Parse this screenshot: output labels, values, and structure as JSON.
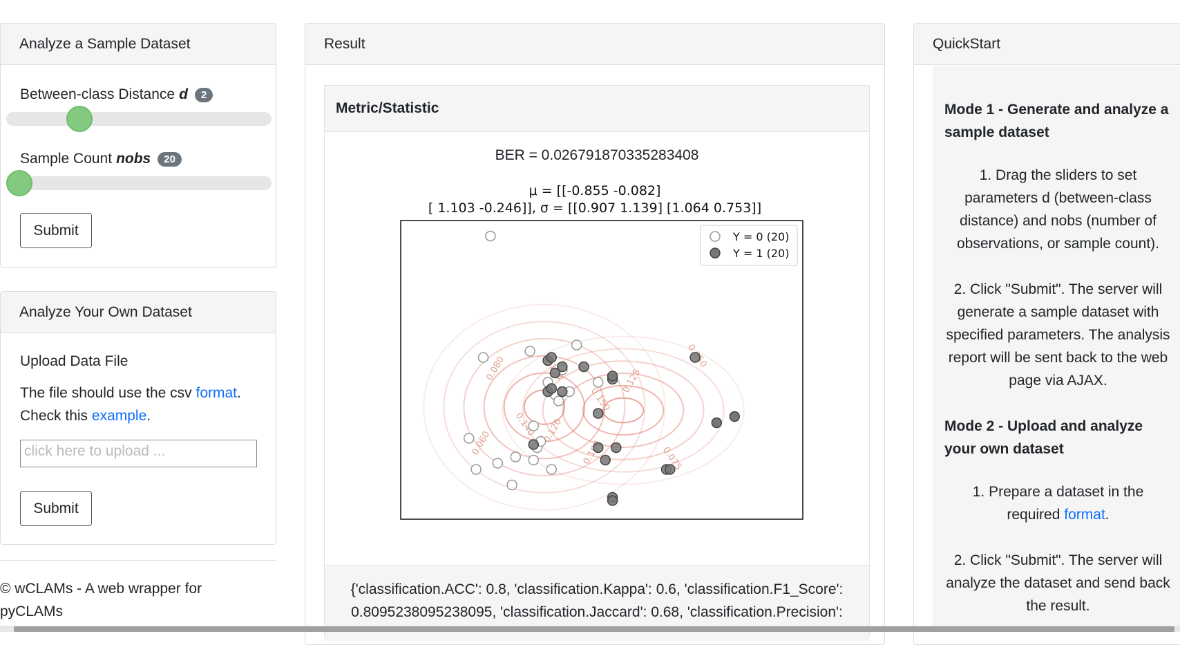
{
  "sample_panel": {
    "title": "Analyze a Sample Dataset",
    "distance_label": "Between-class Distance",
    "distance_symbol": "d",
    "distance_value": "2",
    "distance_fraction": 0.25,
    "count_label": "Sample Count",
    "count_symbol": "nobs",
    "count_value": "20",
    "count_fraction": 0.0,
    "submit_label": "Submit"
  },
  "upload_panel": {
    "title": "Analyze Your Own Dataset",
    "upload_label": "Upload Data File",
    "desc_prefix": "The file should use the csv",
    "format_link": "format",
    "desc_mid": ".",
    "check_prefix": "Check this",
    "example_link": "example",
    "check_suffix": ".",
    "upload_placeholder": "click here to upload ...",
    "submit_label": "Submit"
  },
  "footer": {
    "line1": "© wCLAMs - A web wrapper for",
    "line2": "pyCLAMs"
  },
  "result_panel": {
    "title": "Result",
    "metric_header": "Metric/Statistic",
    "ber": "BER = 0.026791870335283408",
    "metrics_line1": "{'classification.ACC': 0.8, 'classification.Kappa': 0.6, 'classification.F1_Score':",
    "metrics_line2": "0.8095238095238095, 'classification.Jaccard': 0.68, 'classification.Precision':"
  },
  "chart_data": {
    "type": "scatter",
    "title_line1": "μ = [[-0.855 -0.082]",
    "title_line2": "[ 1.103 -0.246]], σ = [[0.907 1.139] [1.064 0.753]]",
    "legend_placement": "top-right",
    "series": [
      {
        "name": "Y = 0 (20)",
        "color": "#ffffff",
        "points": [
          [
            -1.15,
            2.55
          ],
          [
            -1.25,
            0.6
          ],
          [
            -0.6,
            0.7
          ],
          [
            0.05,
            0.8
          ],
          [
            -1.45,
            -0.7
          ],
          [
            -1.35,
            -1.2
          ],
          [
            -1.05,
            -1.1
          ],
          [
            -0.8,
            -1.0
          ],
          [
            -0.55,
            -0.5
          ],
          [
            -0.5,
            -0.85
          ],
          [
            -0.55,
            -1.05
          ],
          [
            -0.45,
            -0.75
          ],
          [
            -0.35,
            0.2
          ],
          [
            -0.25,
            0.0
          ],
          [
            -0.2,
            -0.1
          ],
          [
            0.35,
            0.2
          ],
          [
            -0.15,
            0.4
          ],
          [
            -0.85,
            -1.45
          ],
          [
            -0.3,
            -1.2
          ],
          [
            -0.05,
            0.05
          ]
        ]
      },
      {
        "name": "Y = 1 (20)",
        "color": "#777777",
        "points": [
          [
            -0.35,
            0.55
          ],
          [
            -0.3,
            0.6
          ],
          [
            -0.15,
            0.45
          ],
          [
            0.15,
            0.45
          ],
          [
            -0.25,
            0.35
          ],
          [
            0.55,
            0.25
          ],
          [
            0.55,
            0.3
          ],
          [
            -0.35,
            0.05
          ],
          [
            -0.3,
            0.1
          ],
          [
            -0.15,
            0.05
          ],
          [
            0.35,
            -0.3
          ],
          [
            -0.55,
            -0.8
          ],
          [
            0.35,
            -0.85
          ],
          [
            0.6,
            -0.85
          ],
          [
            0.45,
            -1.05
          ],
          [
            1.3,
            -1.2
          ],
          [
            1.35,
            -1.2
          ],
          [
            0.55,
            -1.65
          ],
          [
            0.55,
            -1.7
          ],
          [
            1.7,
            0.6
          ]
        ]
      }
    ],
    "extra_points": [
      [
        2.0,
        -0.45
      ],
      [
        2.25,
        -0.35
      ]
    ],
    "contour_labels": [
      "0.080",
      "0.100",
      "0.060",
      "0.140",
      "0.120",
      "0.050",
      "0.125",
      "0.150",
      "0.100",
      "0.075"
    ],
    "xlim": [
      -2.4,
      3.2
    ],
    "ylim": [
      -2.0,
      2.8
    ],
    "grid": false
  },
  "quickstart": {
    "title": "QuickStart",
    "mode1_title": "Mode 1 - Generate and analyze a sample dataset",
    "mode1_step1": "1. Drag the sliders to set parameters d (between-class distance) and nobs (number of observations, or sample count).",
    "mode1_step2": "2. Click \"Submit\". The server will generate a sample dataset with specified parameters. The analysis report will be sent back to the web page via AJAX.",
    "mode2_title": "Mode 2 - Upload and analyze your own dataset",
    "mode2_step1_prefix": "1. Prepare a dataset in the required",
    "mode2_step1_link": "format",
    "mode2_step1_suffix": ".",
    "mode2_step2": "2. Click \"Submit\". The server will analyze the dataset and send back the result."
  }
}
